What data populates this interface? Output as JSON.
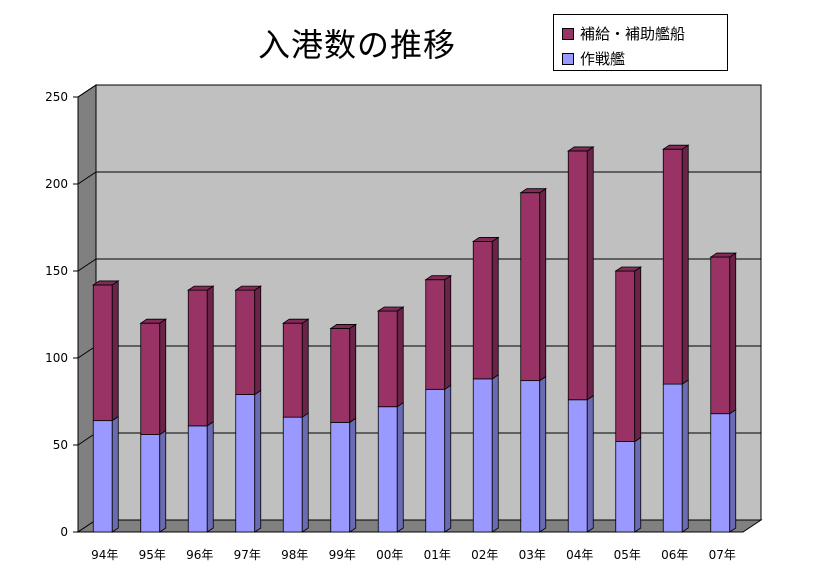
{
  "chart_data": {
    "type": "bar",
    "stacked": true,
    "three_d": true,
    "title": "入港数の推移",
    "categories": [
      "94年",
      "95年",
      "96年",
      "97年",
      "98年",
      "99年",
      "00年",
      "01年",
      "02年",
      "03年",
      "04年",
      "05年",
      "06年",
      "07年"
    ],
    "series": [
      {
        "name": "作戦艦",
        "color": "#9999ff",
        "values": [
          64,
          56,
          61,
          79,
          66,
          63,
          72,
          82,
          88,
          87,
          76,
          52,
          85,
          68
        ]
      },
      {
        "name": "補給・補助艦船",
        "color": "#993366",
        "values": [
          78,
          64,
          78,
          60,
          54,
          54,
          55,
          63,
          79,
          108,
          143,
          98,
          135,
          90
        ]
      }
    ],
    "legend_order": [
      1,
      0
    ],
    "y_ticks": [
      0,
      50,
      100,
      150,
      200,
      250
    ],
    "ylim": [
      0,
      250
    ],
    "grid": true,
    "legend_position": "top-right",
    "plot_color": "#c0c0c0"
  }
}
